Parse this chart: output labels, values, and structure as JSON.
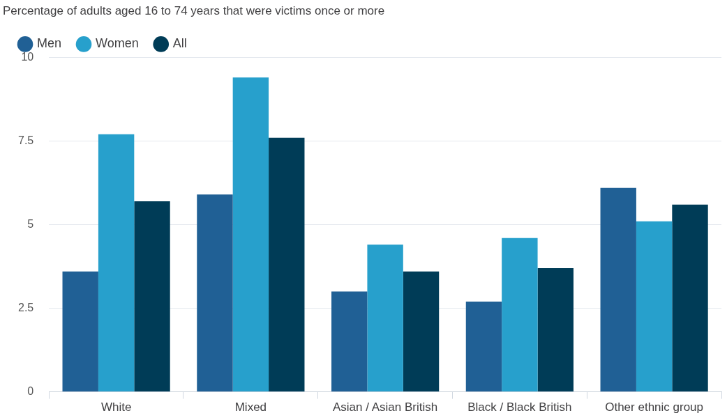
{
  "chart_data": {
    "type": "bar",
    "subtitle": "Percentage of adults aged 16 to 74 years that were victims once or more",
    "categories": [
      "White",
      "Mixed",
      "Asian / Asian British",
      "Black / Black British",
      "Other ethnic group"
    ],
    "series": [
      {
        "name": "Men",
        "color": "#206095",
        "values": [
          3.6,
          5.9,
          3.0,
          2.7,
          6.1
        ]
      },
      {
        "name": "Women",
        "color": "#27a0cc",
        "values": [
          7.7,
          9.4,
          4.4,
          4.6,
          5.1
        ]
      },
      {
        "name": "All",
        "color": "#003c57",
        "values": [
          5.7,
          7.6,
          3.6,
          3.7,
          5.6
        ]
      }
    ],
    "ylim": [
      0,
      10
    ],
    "yticks": [
      0,
      2.5,
      5,
      7.5,
      10
    ],
    "grid": "y",
    "legend": "top left"
  }
}
